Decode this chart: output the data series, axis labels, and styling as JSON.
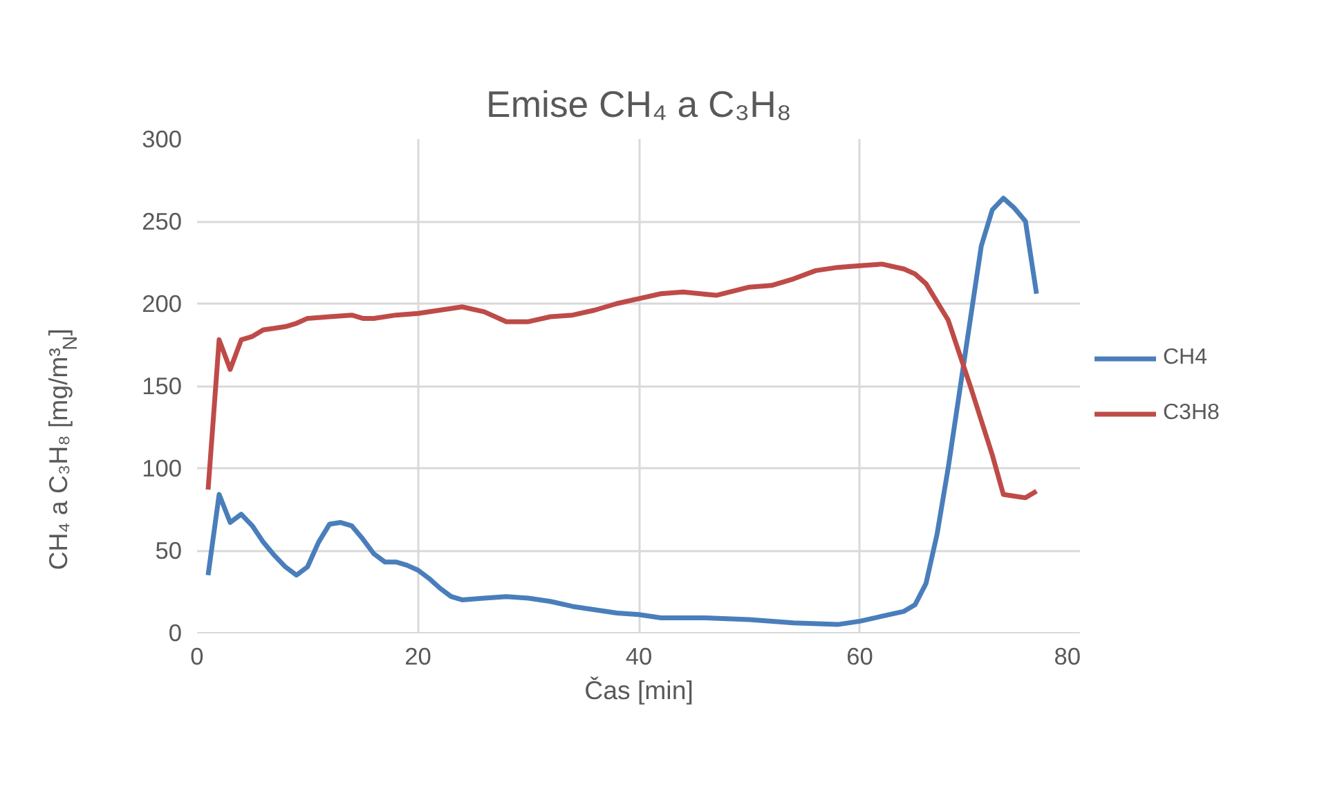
{
  "chart_data": {
    "type": "line",
    "title": "Emise CH₄ a C₃H₈",
    "xlabel": "Čas [min]",
    "ylabel": "CH₄ a C₃H₈ [mg/m³$_{N}$]",
    "xlim": [
      0,
      80
    ],
    "xticks": [
      0,
      20,
      40,
      60,
      80
    ],
    "ylim": [
      0,
      300
    ],
    "yticks": [
      0,
      50,
      100,
      150,
      200,
      250,
      300
    ],
    "grid": true,
    "legend": "right",
    "series": [
      {
        "name": "CH4",
        "color": "#4a7ebb",
        "x": [
          1,
          2,
          3,
          4,
          5,
          6,
          7,
          8,
          9,
          10,
          11,
          12,
          13,
          14,
          15,
          16,
          17,
          18,
          19,
          20,
          21,
          22,
          23,
          24,
          26,
          28,
          30,
          32,
          34,
          36,
          38,
          40,
          42,
          46,
          50,
          54,
          58,
          60,
          62,
          64,
          65,
          66,
          67,
          68,
          69,
          70,
          71,
          72,
          73,
          74,
          75,
          76
        ],
        "values": [
          35,
          84,
          67,
          72,
          65,
          55,
          47,
          40,
          35,
          40,
          55,
          66,
          67,
          65,
          57,
          48,
          43,
          43,
          41,
          38,
          33,
          27,
          22,
          20,
          21,
          22,
          21,
          19,
          16,
          14,
          12,
          11,
          9,
          9,
          8,
          6,
          5,
          7,
          10,
          13,
          17,
          30,
          60,
          100,
          145,
          190,
          235,
          257,
          264,
          258,
          250,
          206
        ]
      },
      {
        "name": "C3H8",
        "color": "#be4b48",
        "x": [
          1,
          2,
          3,
          4,
          5,
          6,
          7,
          8,
          9,
          10,
          12,
          14,
          15,
          16,
          18,
          20,
          22,
          24,
          26,
          28,
          30,
          32,
          34,
          36,
          38,
          40,
          42,
          44,
          47,
          50,
          52,
          54,
          56,
          58,
          60,
          62,
          64,
          65,
          66,
          68,
          70,
          72,
          73,
          74,
          75,
          76
        ],
        "values": [
          87,
          178,
          160,
          178,
          180,
          184,
          185,
          186,
          188,
          191,
          192,
          193,
          191,
          191,
          193,
          194,
          196,
          198,
          195,
          189,
          189,
          192,
          193,
          196,
          200,
          203,
          206,
          207,
          205,
          210,
          211,
          215,
          220,
          222,
          223,
          224,
          221,
          218,
          212,
          190,
          150,
          108,
          84,
          83,
          82,
          86
        ]
      }
    ]
  }
}
